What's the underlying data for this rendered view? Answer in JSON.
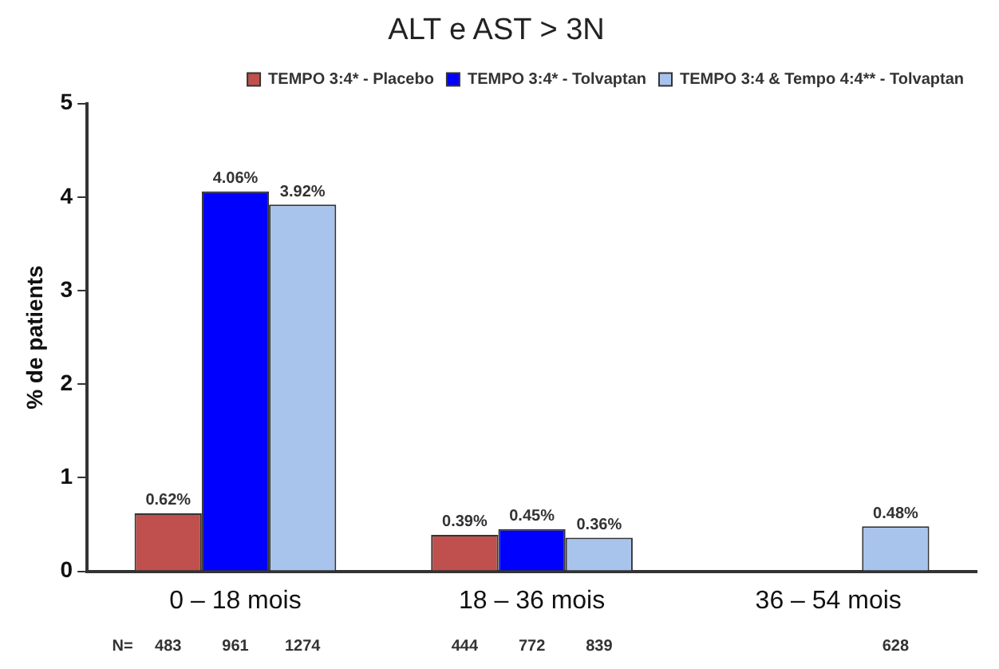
{
  "chart_data": {
    "type": "bar",
    "title": "ALT e AST > 3N",
    "ylabel": "% de patients",
    "categories": [
      "0 – 18 mois",
      "18 – 36 mois",
      "36 – 54 mois"
    ],
    "series": [
      {
        "name": "TEMPO 3:4* - Placebo",
        "color": "#c0504d",
        "values": [
          0.62,
          0.39,
          null
        ],
        "value_labels": [
          "0.62%",
          "0.39%",
          null
        ]
      },
      {
        "name": "TEMPO 3:4* - Tolvaptan",
        "color": "#0000ff",
        "values": [
          4.06,
          0.45,
          null
        ],
        "value_labels": [
          "4.06%",
          "0.45%",
          null
        ]
      },
      {
        "name": "TEMPO 3:4 & Tempo 4:4** - Tolvaptan",
        "color": "#a9c4ec",
        "values": [
          3.92,
          0.36,
          0.48
        ],
        "value_labels": [
          "3.92%",
          "0.36%",
          "0.48%"
        ]
      }
    ],
    "ylim": [
      0,
      5
    ],
    "yticks": [
      0,
      1,
      2,
      3,
      4,
      5
    ],
    "grid": false,
    "legend": "top right",
    "marker": "square",
    "annotations": [
      "N=",
      "483",
      "961",
      "1274",
      "444",
      "772",
      "839",
      "628"
    ]
  }
}
